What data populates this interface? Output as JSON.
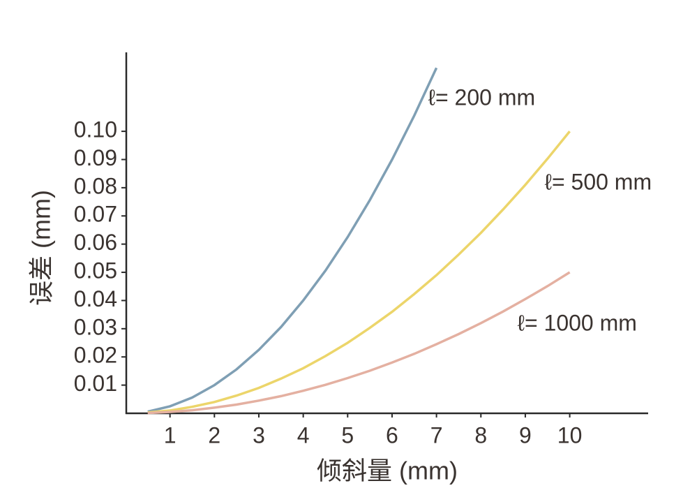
{
  "chart_data": {
    "type": "line",
    "xlabel": "倾斜量 (mm)",
    "ylabel": "误差 (mm)",
    "xlim": [
      0,
      11.75
    ],
    "ylim": [
      0,
      0.128
    ],
    "xticks": [
      1,
      2,
      3,
      4,
      5,
      6,
      7,
      8,
      9,
      10
    ],
    "yticks": [
      0.01,
      0.02,
      0.03,
      0.04,
      0.05,
      0.06,
      0.07,
      0.08,
      0.09,
      {
        "value": 0.1,
        "label": "0.10"
      }
    ],
    "series": [
      {
        "name": "ℓ= 200 mm",
        "color": "#7f9fb4",
        "x": [
          0.5,
          1,
          1.5,
          2,
          2.5,
          3,
          3.5,
          4,
          4.5,
          5,
          5.5,
          6,
          6.5,
          7
        ],
        "values": [
          0.0006,
          0.0025,
          0.0056,
          0.01,
          0.0156,
          0.0225,
          0.0306,
          0.04,
          0.0506,
          0.0625,
          0.0756,
          0.09,
          0.1056,
          0.1225
        ]
      },
      {
        "name": "ℓ= 500 mm",
        "color": "#ecd56a",
        "x": [
          0.5,
          1,
          1.5,
          2,
          2.5,
          3,
          3.5,
          4,
          4.5,
          5,
          5.5,
          6,
          6.5,
          7,
          7.5,
          8,
          8.5,
          9,
          9.5,
          10
        ],
        "values": [
          0.0003,
          0.001,
          0.0023,
          0.004,
          0.0063,
          0.009,
          0.0123,
          0.016,
          0.0203,
          0.025,
          0.0303,
          0.036,
          0.0423,
          0.049,
          0.0563,
          0.064,
          0.0723,
          0.081,
          0.0903,
          0.1
        ]
      },
      {
        "name": "ℓ= 1000 mm",
        "color": "#e4b0a1",
        "x": [
          0.5,
          1,
          1.5,
          2,
          2.5,
          3,
          3.5,
          4,
          4.5,
          5,
          5.5,
          6,
          6.5,
          7,
          7.5,
          8,
          8.5,
          9,
          9.5,
          10
        ],
        "values": [
          0.0001,
          0.0005,
          0.0011,
          0.002,
          0.0031,
          0.0045,
          0.0061,
          0.008,
          0.0101,
          0.0125,
          0.0151,
          0.018,
          0.0211,
          0.0245,
          0.0281,
          0.032,
          0.0361,
          0.0405,
          0.0451,
          0.05
        ]
      }
    ]
  }
}
